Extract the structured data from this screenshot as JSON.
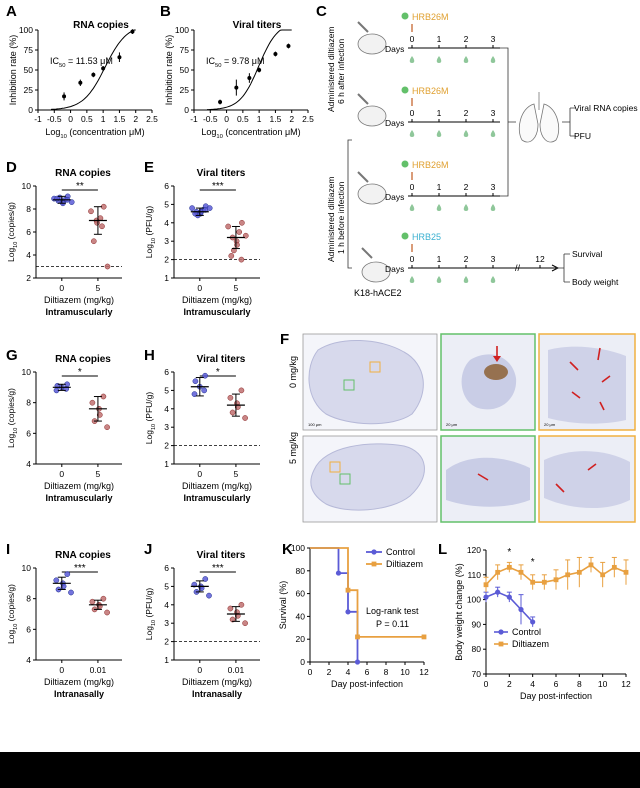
{
  "figure": {
    "colors": {
      "blue": "#5b5bd6",
      "blue_dark": "#1f2f8f",
      "red": "#8b2a2a",
      "red_fill": "#c07070",
      "orange": "#e8a040",
      "green_box": "#63c06a",
      "orange_box": "#f0b040",
      "cyan": "#3ab0d0",
      "black": "#111111"
    }
  },
  "panel_labels": {
    "A": "A",
    "B": "B",
    "C": "C",
    "D": "D",
    "E": "E",
    "F": "F",
    "G": "G",
    "H": "H",
    "I": "I",
    "J": "J",
    "K": "K",
    "L": "L"
  },
  "schematic": {
    "strain_1": "HRB26M",
    "strain_2": "HRB26M",
    "strain_3": "HRB26M",
    "strain_4": "HRB25",
    "days_label": "Days",
    "days_ticks": [
      "0",
      "1",
      "2",
      "3"
    ],
    "days_ticks_long": [
      "0",
      "1",
      "2",
      "3",
      "12"
    ],
    "group_top": "Administered diltiazem\n6 h after infection",
    "group_top_line1": "Administered diltiazem",
    "group_top_line2": "6 h after infection",
    "group_bottom_line1": "Administered diltiazem",
    "group_bottom_line2": "1 h before infection",
    "readout_1": "Viral RNA copies",
    "readout_2": "PFU",
    "readout_3": "Survival",
    "readout_4": "Body weight",
    "mouse_label": "K18-hACE2",
    "break_mark": "//"
  },
  "histology": {
    "row_1": "0 mg/kg",
    "row_2": "5 mg/kg",
    "scale_1": "100 μm",
    "scale_2": "20 μm",
    "scale_3": "20 μm"
  },
  "chart_data": [
    {
      "panel": "A",
      "type": "scatter",
      "title": "RNA copies",
      "xlabel": "Log10 (concentration μM)",
      "ylabel": "Inhibition rate (%)",
      "annotation": "IC50 = 11.53 μM",
      "xlim": [
        -1,
        2.5
      ],
      "ylim": [
        0,
        100
      ],
      "xticks": [
        "-1",
        "-0.5",
        "0",
        "0.5",
        "1",
        "1.5",
        "2",
        "2.5"
      ],
      "yticks": [
        "0",
        "25",
        "50",
        "75",
        "100"
      ],
      "x": [
        -0.2,
        0.3,
        0.7,
        1.0,
        1.5,
        1.9
      ],
      "y": [
        17,
        34,
        44,
        52,
        66,
        98
      ],
      "err": [
        5,
        4,
        3,
        3,
        6,
        3
      ],
      "fit": {
        "ic50_log": 1.06,
        "hill": 1.3,
        "top": 107
      }
    },
    {
      "panel": "B",
      "type": "scatter",
      "title": "Viral titers",
      "xlabel": "Log10 (concentration μM)",
      "ylabel": "Inhibition rate (%)",
      "annotation": "IC50 = 9.78 μM",
      "xlim": [
        -1,
        2.5
      ],
      "ylim": [
        0,
        100
      ],
      "xticks": [
        "-1",
        "-0.5",
        "0",
        "0.5",
        "1",
        "1.5",
        "2",
        "2.5"
      ],
      "yticks": [
        "0",
        "25",
        "50",
        "75",
        "100"
      ],
      "x": [
        -0.2,
        0.3,
        0.7,
        1.0,
        1.5,
        1.9
      ],
      "y": [
        10,
        28,
        40,
        50,
        70,
        80
      ],
      "err": [
        3,
        10,
        6,
        3,
        3,
        3
      ],
      "fit": {
        "ic50_log": 0.99,
        "hill": 1.5,
        "top": 110
      }
    },
    {
      "panel": "D",
      "type": "scatter",
      "title": "RNA copies",
      "ylabel": "Log10 (copies/g)",
      "xlabel": "Diltiazem (mg/kg)",
      "route": "Intramuscularly",
      "categories": [
        "0",
        "5"
      ],
      "ylim": [
        2,
        10
      ],
      "yticks": [
        "2",
        "4",
        "6",
        "8",
        "10"
      ],
      "lod": 3,
      "sig": "**",
      "groups": [
        {
          "values": [
            9.1,
            8.9,
            8.8,
            8.7,
            8.6,
            8.5,
            9.0,
            8.8,
            8.9,
            8.6
          ],
          "mean": 8.8,
          "sd": 0.3
        },
        {
          "values": [
            8.2,
            7.8,
            7.2,
            7.0,
            6.8,
            6.5,
            5.2,
            3.0
          ],
          "mean": 7.0,
          "sd": 1.2
        }
      ]
    },
    {
      "panel": "E",
      "type": "scatter",
      "title": "Viral titers",
      "ylabel": "Log10 (PFU/g)",
      "xlabel": "Diltiazem (mg/kg)",
      "route": "Intramuscularly",
      "categories": [
        "0",
        "5"
      ],
      "ylim": [
        1,
        6
      ],
      "yticks": [
        "1",
        "2",
        "3",
        "4",
        "5",
        "6"
      ],
      "lod": 2,
      "sig": "***",
      "groups": [
        {
          "values": [
            4.9,
            4.8,
            4.7,
            4.6,
            4.5,
            4.6,
            4.4,
            4.7,
            4.5,
            4.8
          ],
          "mean": 4.6,
          "sd": 0.2
        },
        {
          "values": [
            4.0,
            3.8,
            3.5,
            3.2,
            3.0,
            2.8,
            2.5,
            2.0,
            2.2,
            3.3
          ],
          "mean": 3.2,
          "sd": 0.6
        }
      ]
    },
    {
      "panel": "G",
      "type": "scatter",
      "title": "RNA copies",
      "ylabel": "Log10 (copies/g)",
      "xlabel": "Diltiazem (mg/kg)",
      "route": "Intramuscularly",
      "categories": [
        "0",
        "5"
      ],
      "ylim": [
        4,
        10
      ],
      "yticks": [
        "4",
        "6",
        "8",
        "10"
      ],
      "lod": null,
      "sig": "*",
      "groups": [
        {
          "values": [
            9.2,
            9.1,
            9.0,
            8.9,
            8.8
          ],
          "mean": 9.0,
          "sd": 0.2
        },
        {
          "values": [
            8.4,
            8.0,
            7.6,
            7.2,
            6.8,
            6.4
          ],
          "mean": 7.6,
          "sd": 0.8
        }
      ]
    },
    {
      "panel": "H",
      "type": "scatter",
      "title": "Viral titers",
      "ylabel": "Log10 (PFU/g)",
      "xlabel": "Diltiazem (mg/kg)",
      "route": "Intramuscularly",
      "categories": [
        "0",
        "5"
      ],
      "ylim": [
        1,
        6
      ],
      "yticks": [
        "1",
        "2",
        "3",
        "4",
        "5",
        "6"
      ],
      "lod": 2,
      "sig": "*",
      "groups": [
        {
          "values": [
            5.8,
            5.5,
            5.2,
            5.0,
            4.8
          ],
          "mean": 5.2,
          "sd": 0.5
        },
        {
          "values": [
            5.0,
            4.6,
            4.3,
            4.1,
            3.8,
            3.5
          ],
          "mean": 4.2,
          "sd": 0.6
        }
      ]
    },
    {
      "panel": "I",
      "type": "scatter",
      "title": "RNA copies",
      "ylabel": "Log10 (copies/g)",
      "xlabel": "Diltiazem (mg/kg)",
      "route": "Intranasally",
      "categories": [
        "0",
        "0.01"
      ],
      "ylim": [
        4,
        10
      ],
      "yticks": [
        "4",
        "6",
        "8",
        "10"
      ],
      "lod": null,
      "sig": "***",
      "groups": [
        {
          "values": [
            9.6,
            9.2,
            9.0,
            8.8,
            8.6,
            8.4
          ],
          "mean": 9.0,
          "sd": 0.4
        },
        {
          "values": [
            8.0,
            7.8,
            7.6,
            7.5,
            7.3,
            7.1
          ],
          "mean": 7.6,
          "sd": 0.3
        }
      ]
    },
    {
      "panel": "J",
      "type": "scatter",
      "title": "Viral titers",
      "ylabel": "Log10 (PFU/g)",
      "xlabel": "Diltiazem (mg/kg)",
      "route": "Intranasally",
      "categories": [
        "0",
        "0.01"
      ],
      "ylim": [
        1,
        6
      ],
      "yticks": [
        "1",
        "2",
        "3",
        "4",
        "5",
        "6"
      ],
      "lod": 2,
      "sig": "***",
      "groups": [
        {
          "values": [
            5.4,
            5.1,
            5.0,
            4.9,
            4.7,
            4.5
          ],
          "mean": 5.0,
          "sd": 0.3
        },
        {
          "values": [
            4.0,
            3.8,
            3.6,
            3.4,
            3.2,
            3.0
          ],
          "mean": 3.5,
          "sd": 0.4
        }
      ]
    },
    {
      "panel": "K",
      "type": "line",
      "ylabel": "Survival (%)",
      "xlabel": "Day post-infection",
      "xlim": [
        0,
        12
      ],
      "ylim": [
        0,
        100
      ],
      "xticks": [
        "0",
        "2",
        "4",
        "6",
        "8",
        "10",
        "12"
      ],
      "yticks": [
        "0",
        "20",
        "40",
        "60",
        "80",
        "100"
      ],
      "annotation_1": "Log-rank test",
      "annotation_2": "P = 0.11",
      "series": [
        {
          "name": "Control",
          "color": "#5b5bd6",
          "steps": [
            [
              0,
              100
            ],
            [
              3,
              100
            ],
            [
              3,
              78
            ],
            [
              4,
              78
            ],
            [
              4,
              44
            ],
            [
              5,
              44
            ],
            [
              5,
              0
            ]
          ],
          "points": [
            [
              3,
              78
            ],
            [
              4,
              44
            ],
            [
              5,
              0
            ]
          ]
        },
        {
          "name": "Diltiazem",
          "color": "#e8a040",
          "steps": [
            [
              0,
              100
            ],
            [
              4,
              100
            ],
            [
              4,
              63
            ],
            [
              5,
              63
            ],
            [
              5,
              22
            ],
            [
              12,
              22
            ]
          ],
          "points": [
            [
              4,
              63
            ],
            [
              5,
              22
            ],
            [
              12,
              22
            ]
          ]
        }
      ]
    },
    {
      "panel": "L",
      "type": "line",
      "ylabel": "Body weight change (%)",
      "xlabel": "Day post-infection",
      "xlim": [
        0,
        12
      ],
      "ylim": [
        70,
        120
      ],
      "xticks": [
        "0",
        "2",
        "4",
        "6",
        "8",
        "10",
        "12"
      ],
      "yticks": [
        "70",
        "80",
        "90",
        "100",
        "110",
        "120"
      ],
      "stars": [
        "*",
        "*"
      ],
      "series": [
        {
          "name": "Control",
          "color": "#5b5bd6",
          "x": [
            0,
            1,
            2,
            3,
            4
          ],
          "y": [
            101,
            103,
            101,
            96,
            91
          ],
          "err": [
            2,
            2,
            2,
            6,
            2
          ]
        },
        {
          "name": "Diltiazem",
          "color": "#e8a040",
          "x": [
            0,
            1,
            2,
            3,
            4,
            5,
            6,
            7,
            8,
            9,
            10,
            11,
            12
          ],
          "y": [
            106,
            111,
            113,
            111,
            107,
            107,
            108,
            110,
            111,
            114,
            110,
            113,
            111
          ],
          "err": [
            3,
            3,
            2,
            3,
            3,
            3,
            4,
            6,
            6,
            3,
            5,
            4,
            5
          ]
        }
      ]
    }
  ]
}
